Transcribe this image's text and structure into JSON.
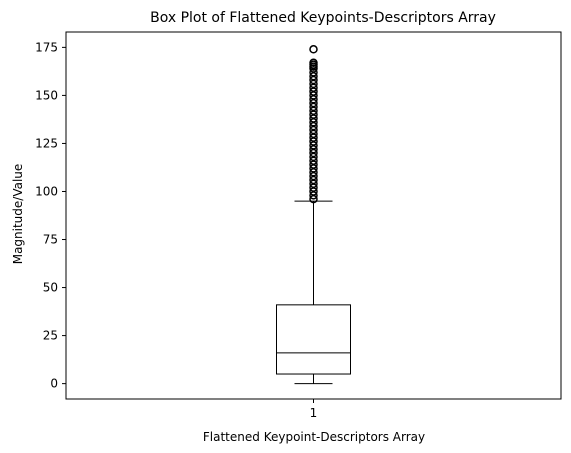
{
  "chart_data": {
    "type": "box",
    "title": "Box Plot of Flattened Keypoints-Descriptors Array",
    "xlabel": "Flattened Keypoint-Descriptors Array",
    "ylabel": "Magnitude/Value",
    "ylim": [
      -8,
      183
    ],
    "yticks": [
      0,
      25,
      50,
      75,
      100,
      125,
      150,
      175
    ],
    "xticks": [
      "1"
    ],
    "grid": false,
    "box": {
      "category": "1",
      "whisker_low": 0,
      "q1": 5,
      "median": 16,
      "q3": 41,
      "whisker_high": 95,
      "outliers": [
        96,
        98,
        100,
        102,
        104,
        106,
        108,
        110,
        112,
        114,
        116,
        118,
        120,
        122,
        124,
        126,
        128,
        130,
        132,
        134,
        136,
        138,
        140,
        142,
        144,
        146,
        148,
        150,
        152,
        154,
        156,
        158,
        160,
        162,
        164,
        165,
        166,
        167,
        174
      ]
    },
    "colors": {
      "box": "#000000",
      "median": "#000000",
      "whiskers": "#000000",
      "outlier_edge": "#000000"
    }
  }
}
